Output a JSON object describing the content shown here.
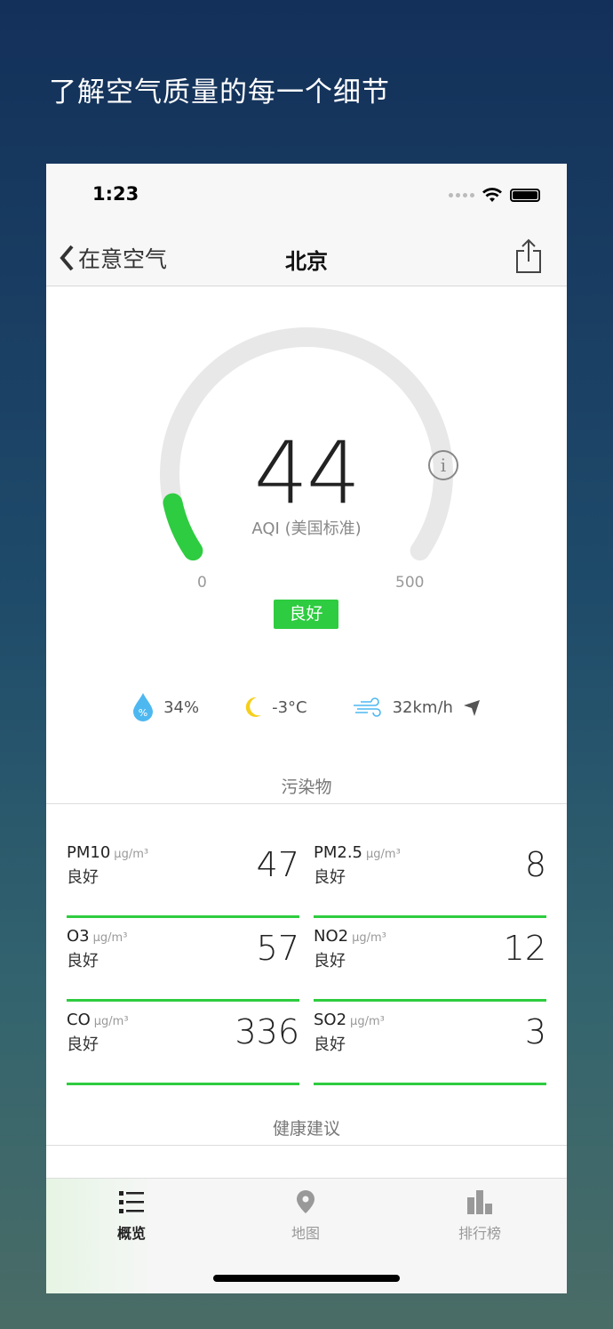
{
  "headline": "了解空气质量的每一个细节",
  "status": {
    "time": "1:23"
  },
  "nav": {
    "back_label": "在意空气",
    "title": "北京"
  },
  "gauge": {
    "value": "44",
    "label": "AQI (美国标准)",
    "min": "0",
    "max": "500",
    "fraction": 0.088,
    "level": "良好",
    "color": "#2ecc40"
  },
  "weather": {
    "humidity": "34%",
    "temperature": "-3°C",
    "wind": "32km/h"
  },
  "pollutants_title": "污染物",
  "pollutants": [
    {
      "name": "PM10",
      "unit": "μg/m³",
      "level": "良好",
      "value": "47"
    },
    {
      "name": "PM2.5",
      "unit": "μg/m³",
      "level": "良好",
      "value": "8"
    },
    {
      "name": "O3",
      "unit": "μg/m³",
      "level": "良好",
      "value": "57"
    },
    {
      "name": "NO2",
      "unit": "μg/m³",
      "level": "良好",
      "value": "12"
    },
    {
      "name": "CO",
      "unit": "μg/m³",
      "level": "良好",
      "value": "336"
    },
    {
      "name": "SO2",
      "unit": "μg/m³",
      "level": "良好",
      "value": "3"
    }
  ],
  "health_title": "健康建议",
  "tabs": [
    {
      "label": "概览",
      "active": true
    },
    {
      "label": "地图"
    },
    {
      "label": "排行榜"
    }
  ]
}
